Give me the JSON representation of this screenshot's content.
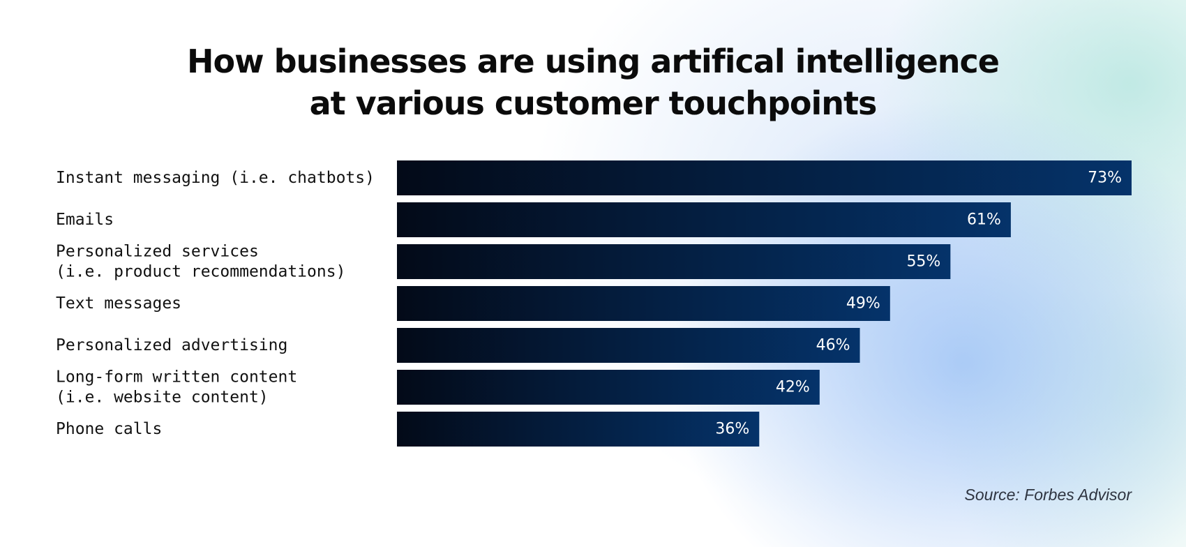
{
  "title_lines": [
    "How businesses are using artifical intelligence",
    "at various customer touchpoints"
  ],
  "source": "Source: Forbes Advisor",
  "colors": {
    "bar_start": "#030a18",
    "bar_end": "#05336a",
    "value_label": "#ffffff",
    "category_label": "#111111"
  },
  "chart_data": {
    "type": "bar",
    "orientation": "horizontal",
    "title": "How businesses are using artifical intelligence at various customer touchpoints",
    "categories": [
      [
        "Instant messaging (i.e. chatbots)"
      ],
      [
        "Emails"
      ],
      [
        "Personalized services",
        "(i.e. product recommendations)"
      ],
      [
        "Text messages"
      ],
      [
        "Personalized advertising"
      ],
      [
        "Long-form written content",
        "(i.e. website content)"
      ],
      [
        "Phone calls"
      ]
    ],
    "values": [
      73,
      61,
      55,
      49,
      46,
      42,
      36
    ],
    "value_labels": [
      "73%",
      "61%",
      "55%",
      "49%",
      "46%",
      "42%",
      "36%"
    ],
    "xlim": [
      0,
      73
    ],
    "grid": false,
    "legend": "none"
  }
}
